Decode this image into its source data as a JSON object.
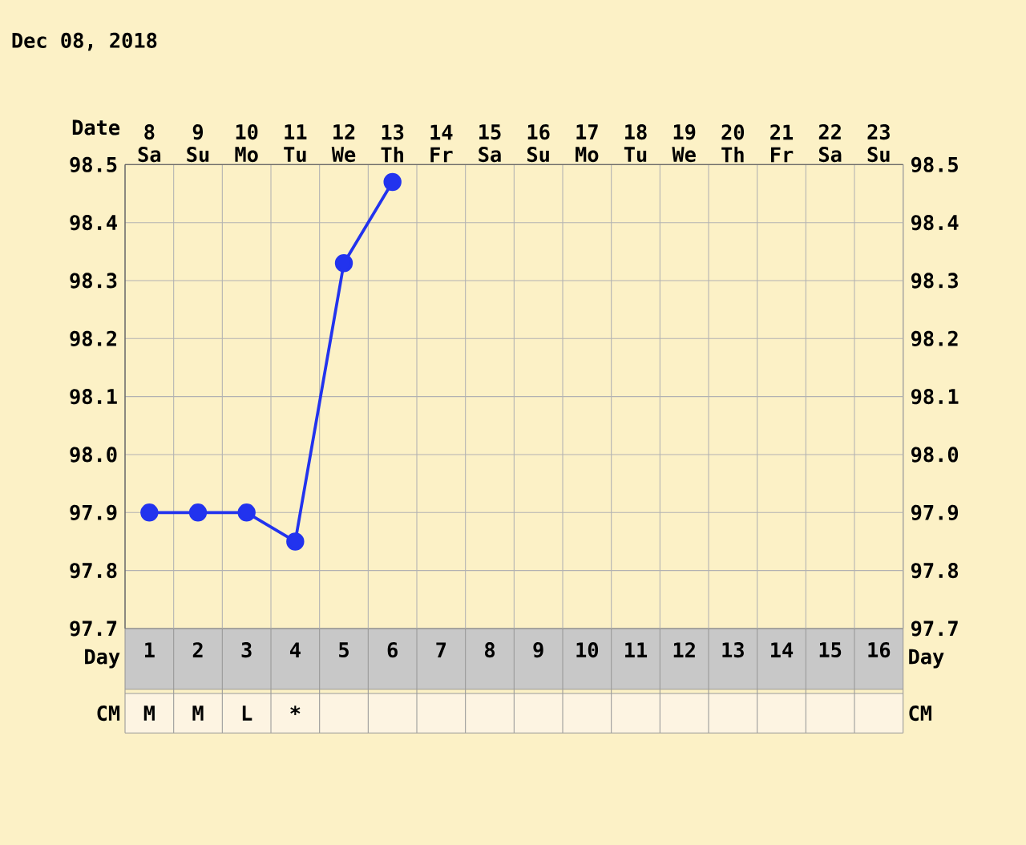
{
  "chart_data": {
    "type": "line",
    "title": "Dec 08, 2018",
    "xlabel": "Date",
    "x2label": "Day",
    "x": [
      "2018-12-08",
      "2018-12-09",
      "2018-12-10",
      "2018-12-11",
      "2018-12-12",
      "2018-12-13"
    ],
    "xlim": [
      "2018-12-07T12:00",
      "2018-12-23T12:00"
    ],
    "xticks": [
      {
        "value": "2018-12-08",
        "label": "8 Sa"
      },
      {
        "value": "2018-12-09",
        "label": "9 Su"
      },
      {
        "value": "2018-12-10",
        "label": "10 Mo"
      },
      {
        "value": "2018-12-11",
        "label": "11 Tu"
      },
      {
        "value": "2018-12-12",
        "label": "12 We"
      },
      {
        "value": "2018-12-13",
        "label": "13 Th"
      },
      {
        "value": "2018-12-14",
        "label": "14 Fr"
      },
      {
        "value": "2018-12-15",
        "label": "15 Sa"
      },
      {
        "value": "2018-12-16",
        "label": "16 Su"
      },
      {
        "value": "2018-12-17",
        "label": "17 Mo"
      },
      {
        "value": "2018-12-18",
        "label": "18 Tu"
      },
      {
        "value": "2018-12-19",
        "label": "19 We"
      },
      {
        "value": "2018-12-20",
        "label": "20 Th"
      },
      {
        "value": "2018-12-21",
        "label": "21 Fr"
      },
      {
        "value": "2018-12-22",
        "label": "22 Sa"
      },
      {
        "value": "2018-12-23",
        "label": "23 Su"
      }
    ],
    "x2lim": [
      0.5,
      16.5
    ],
    "x2ticks": [
      1,
      2,
      3,
      4,
      5,
      6,
      7,
      8,
      9,
      10,
      11,
      12,
      13,
      14,
      15,
      16
    ],
    "ylim": [
      97.7,
      98.5
    ],
    "yticks": [
      {
        "value": 97.7,
        "label": "97.7"
      },
      {
        "value": 97.8,
        "label": "97.8"
      },
      {
        "value": 97.9,
        "label": "97.9"
      },
      {
        "value": 98,
        "label": "98.0"
      },
      {
        "value": 98.1,
        "label": "98.1"
      },
      {
        "value": 98.2,
        "label": "98.2"
      },
      {
        "value": 98.3,
        "label": "98.3"
      },
      {
        "value": 98.4,
        "label": "98.4"
      },
      {
        "value": 98.5,
        "label": "98.5"
      }
    ],
    "series": [
      {
        "color": "#2233ee",
        "axis": "y",
        "values": [
          97.9,
          97.9,
          97.9,
          97.85,
          98.33,
          98.47
        ]
      }
    ],
    "grid": true,
    "marker": "circle",
    "line_style": "solid",
    "annotations": [
      "CM",
      "M",
      "M",
      "L",
      "*"
    ]
  }
}
